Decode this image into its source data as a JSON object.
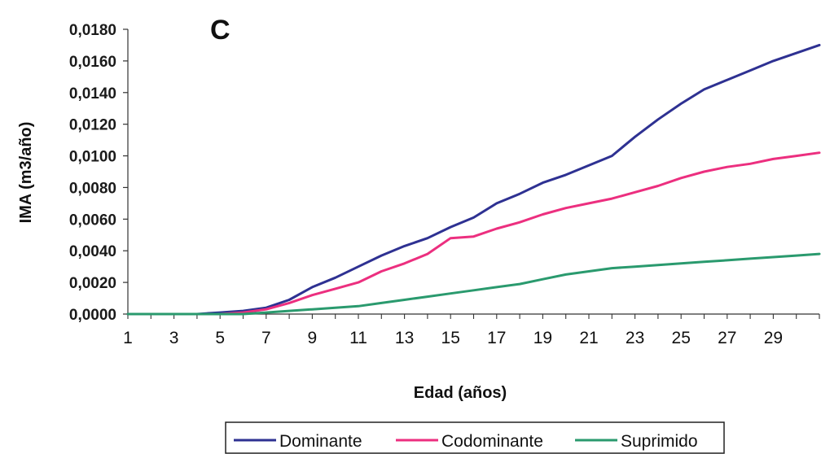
{
  "chart_data": {
    "type": "line",
    "panel_label": "C",
    "ylabel": "IMA (m3/año)",
    "xlabel": "Edad (años)",
    "ylim": [
      0,
      0.018
    ],
    "xlim": [
      1,
      31
    ],
    "y_ticks": [
      "0,0000",
      "0,0020",
      "0,0040",
      "0,0060",
      "0,0080",
      "0,0100",
      "0,0120",
      "0,0140",
      "0,0160",
      "0,0180"
    ],
    "x_ticks": [
      "1",
      "3",
      "5",
      "7",
      "9",
      "11",
      "13",
      "15",
      "17",
      "19",
      "21",
      "23",
      "25",
      "27",
      "29"
    ],
    "x": [
      1,
      2,
      3,
      4,
      5,
      6,
      7,
      8,
      9,
      10,
      11,
      12,
      13,
      14,
      15,
      16,
      17,
      18,
      19,
      20,
      21,
      22,
      23,
      24,
      25,
      26,
      27,
      28,
      29,
      30,
      31
    ],
    "legend_position": "bottom",
    "series": [
      {
        "name": "Dominante",
        "color": "#2e3192",
        "values": [
          0,
          0,
          0,
          0,
          0.0001,
          0.0002,
          0.0004,
          0.0009,
          0.0017,
          0.0023,
          0.003,
          0.0037,
          0.0043,
          0.0048,
          0.0055,
          0.0061,
          0.007,
          0.0076,
          0.0083,
          0.0088,
          0.0094,
          0.01,
          0.0112,
          0.0123,
          0.0133,
          0.0142,
          0.0148,
          0.0154,
          0.016,
          0.0165,
          0.017
        ]
      },
      {
        "name": "Codominante",
        "color": "#ec2f7f",
        "values": [
          0,
          0,
          0,
          0,
          0,
          0.0001,
          0.0003,
          0.0007,
          0.0012,
          0.0016,
          0.002,
          0.0027,
          0.0032,
          0.0038,
          0.0048,
          0.0049,
          0.0054,
          0.0058,
          0.0063,
          0.0067,
          0.007,
          0.0073,
          0.0077,
          0.0081,
          0.0086,
          0.009,
          0.0093,
          0.0095,
          0.0098,
          0.01,
          0.0102
        ]
      },
      {
        "name": "Suprimido",
        "color": "#2a9a6e",
        "values": [
          0,
          0,
          0,
          0,
          0,
          0,
          0.0001,
          0.0002,
          0.0003,
          0.0004,
          0.0005,
          0.0007,
          0.0009,
          0.0011,
          0.0013,
          0.0015,
          0.0017,
          0.0019,
          0.0022,
          0.0025,
          0.0027,
          0.0029,
          0.003,
          0.0031,
          0.0032,
          0.0033,
          0.0034,
          0.0035,
          0.0036,
          0.0037,
          0.0038
        ]
      }
    ]
  }
}
